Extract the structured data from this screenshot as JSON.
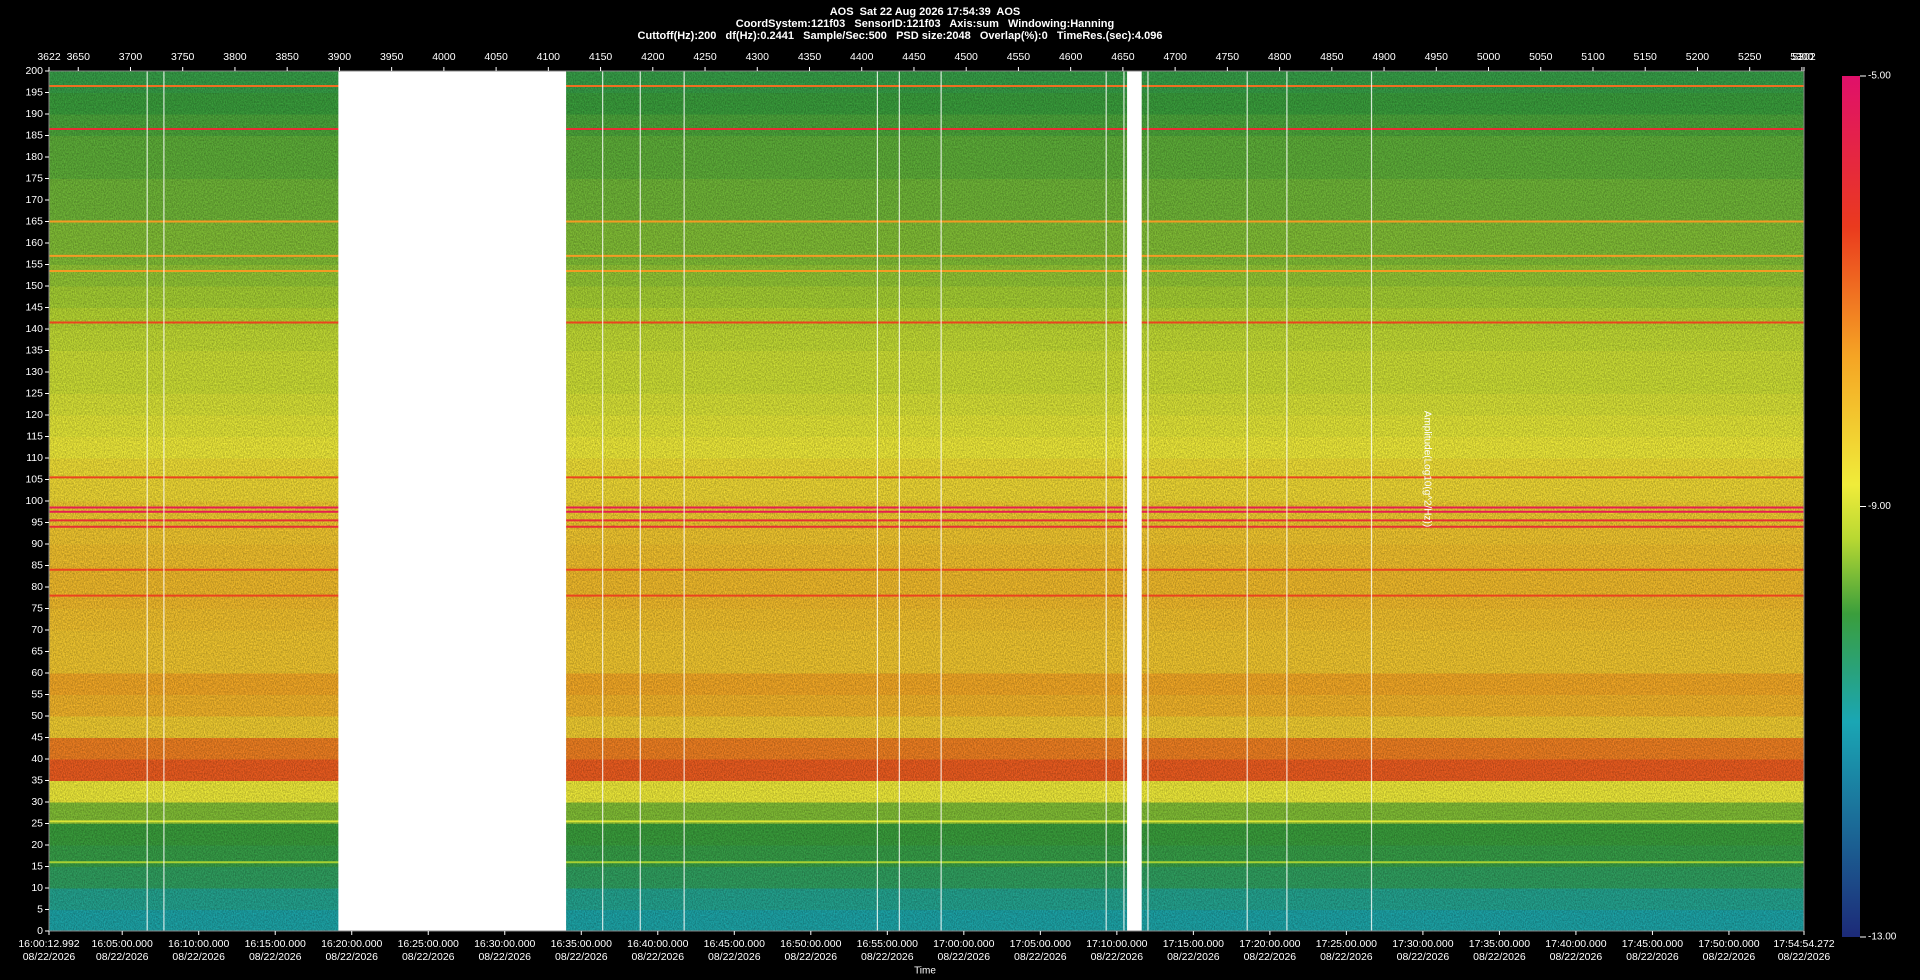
{
  "chart_data": {
    "type": "spectrogram",
    "title": "AOS  Sat 22 Aug 2026 17:54:39  AOS",
    "subtitle": "CoordSystem:121f03   SensorID:121f03   Axis:sum   Windowing:Hanning",
    "settings_line": "Cuttoff(Hz):200   df(Hz):0.2441   Sample/Sec:500   PSD size:2048   Overlap(%):0   TimeRes.(sec):4.096",
    "x_label": "Time",
    "z_label": "Amplitude(Log10(g^2/Hz))",
    "date": "08/22/2026",
    "x2lim": [
      3622,
      5302
    ],
    "x2ticks": [
      3622,
      3650,
      3700,
      3750,
      3800,
      3850,
      3900,
      3950,
      4000,
      4050,
      4100,
      4150,
      4200,
      4250,
      4300,
      4350,
      4400,
      4450,
      4500,
      4550,
      4600,
      4650,
      4700,
      4750,
      4800,
      4850,
      4900,
      4950,
      5000,
      5050,
      5100,
      5150,
      5200,
      5250,
      5300,
      5302
    ],
    "xticks_time": [
      "16:00:12.992",
      "16:05:00.000",
      "16:10:00.000",
      "16:15:00.000",
      "16:20:00.000",
      "16:25:00.000",
      "16:30:00.000",
      "16:35:00.000",
      "16:40:00.000",
      "16:45:00.000",
      "16:50:00.000",
      "16:55:00.000",
      "17:00:00.000",
      "17:05:00.000",
      "17:10:00.000",
      "17:15:00.000",
      "17:20:00.000",
      "17:25:00.000",
      "17:30:00.000",
      "17:35:00.000",
      "17:40:00.000",
      "17:45:00.000",
      "17:50:00.000",
      "17:54:54.272"
    ],
    "ylim": [
      0,
      200
    ],
    "yticks": [
      0,
      5,
      10,
      15,
      20,
      25,
      30,
      35,
      40,
      45,
      50,
      55,
      60,
      65,
      70,
      75,
      80,
      85,
      90,
      95,
      100,
      105,
      110,
      115,
      120,
      125,
      130,
      135,
      140,
      145,
      150,
      155,
      160,
      165,
      170,
      175,
      180,
      185,
      190,
      195,
      200
    ],
    "zlim": [
      -13,
      -5
    ],
    "zticks": [
      {
        "value": -13,
        "label": "-13.00"
      },
      {
        "value": -9,
        "label": "-9.00"
      },
      {
        "value": -5,
        "label": "-5.00"
      }
    ],
    "colormap": [
      {
        "value": -13,
        "color": "#1c2a78"
      },
      {
        "value": -11,
        "color": "#1aa6b4"
      },
      {
        "value": -10,
        "color": "#3a9e3c"
      },
      {
        "value": -9.3,
        "color": "#b8d832"
      },
      {
        "value": -8.8,
        "color": "#f0ec3a"
      },
      {
        "value": -7.6,
        "color": "#f5a424"
      },
      {
        "value": -6.4,
        "color": "#ea3a1e"
      },
      {
        "value": -5,
        "color": "#e0106a"
      }
    ],
    "freq_bins": [
      0,
      5,
      10,
      15,
      20,
      25,
      30,
      35,
      40,
      45,
      50,
      55,
      60,
      65,
      70,
      75,
      80,
      85,
      90,
      95,
      100,
      105,
      110,
      115,
      120,
      125,
      130,
      135,
      140,
      145,
      150,
      155,
      160,
      165,
      170,
      175,
      180,
      185,
      190,
      195,
      200
    ],
    "amplitude": [
      -10.9,
      -10.7,
      -10.3,
      -10.1,
      -10.0,
      -9.6,
      -8.8,
      -6.8,
      -7.2,
      -8.3,
      -7.9,
      -7.7,
      -8.2,
      -8.2,
      -8.1,
      -8.0,
      -8.0,
      -8.1,
      -8.2,
      -8.3,
      -8.5,
      -8.6,
      -8.8,
      -8.9,
      -9.0,
      -9.1,
      -9.1,
      -9.2,
      -9.3,
      -9.4,
      -9.5,
      -9.6,
      -9.6,
      -9.7,
      -9.7,
      -9.8,
      -9.8,
      -9.9,
      -10.0,
      -10.1
    ],
    "tones": [
      {
        "freq": 196.5,
        "amplitude": -7
      },
      {
        "freq": 186.5,
        "amplitude": -6
      },
      {
        "freq": 165,
        "amplitude": -7.5
      },
      {
        "freq": 157,
        "amplitude": -7.5
      },
      {
        "freq": 153.5,
        "amplitude": -7.5
      },
      {
        "freq": 141.5,
        "amplitude": -6.5
      },
      {
        "freq": 105.5,
        "amplitude": -6.5
      },
      {
        "freq": 98.5,
        "amplitude": -5.5
      },
      {
        "freq": 97.5,
        "amplitude": -5.5
      },
      {
        "freq": 95.5,
        "amplitude": -6
      },
      {
        "freq": 94,
        "amplitude": -6
      },
      {
        "freq": 84,
        "amplitude": -6.5
      },
      {
        "freq": 78,
        "amplitude": -6.5
      },
      {
        "freq": 25.5,
        "amplitude": -9
      },
      {
        "freq": 16,
        "amplitude": -9.4
      }
    ],
    "gaps": [
      [
        3899,
        4117
      ],
      [
        4654,
        4668
      ]
    ],
    "event_lines": [
      3716,
      3732,
      4152,
      4188,
      4230,
      4415,
      4436,
      4476,
      4634,
      4651,
      4674,
      4769,
      4807,
      4888
    ]
  }
}
